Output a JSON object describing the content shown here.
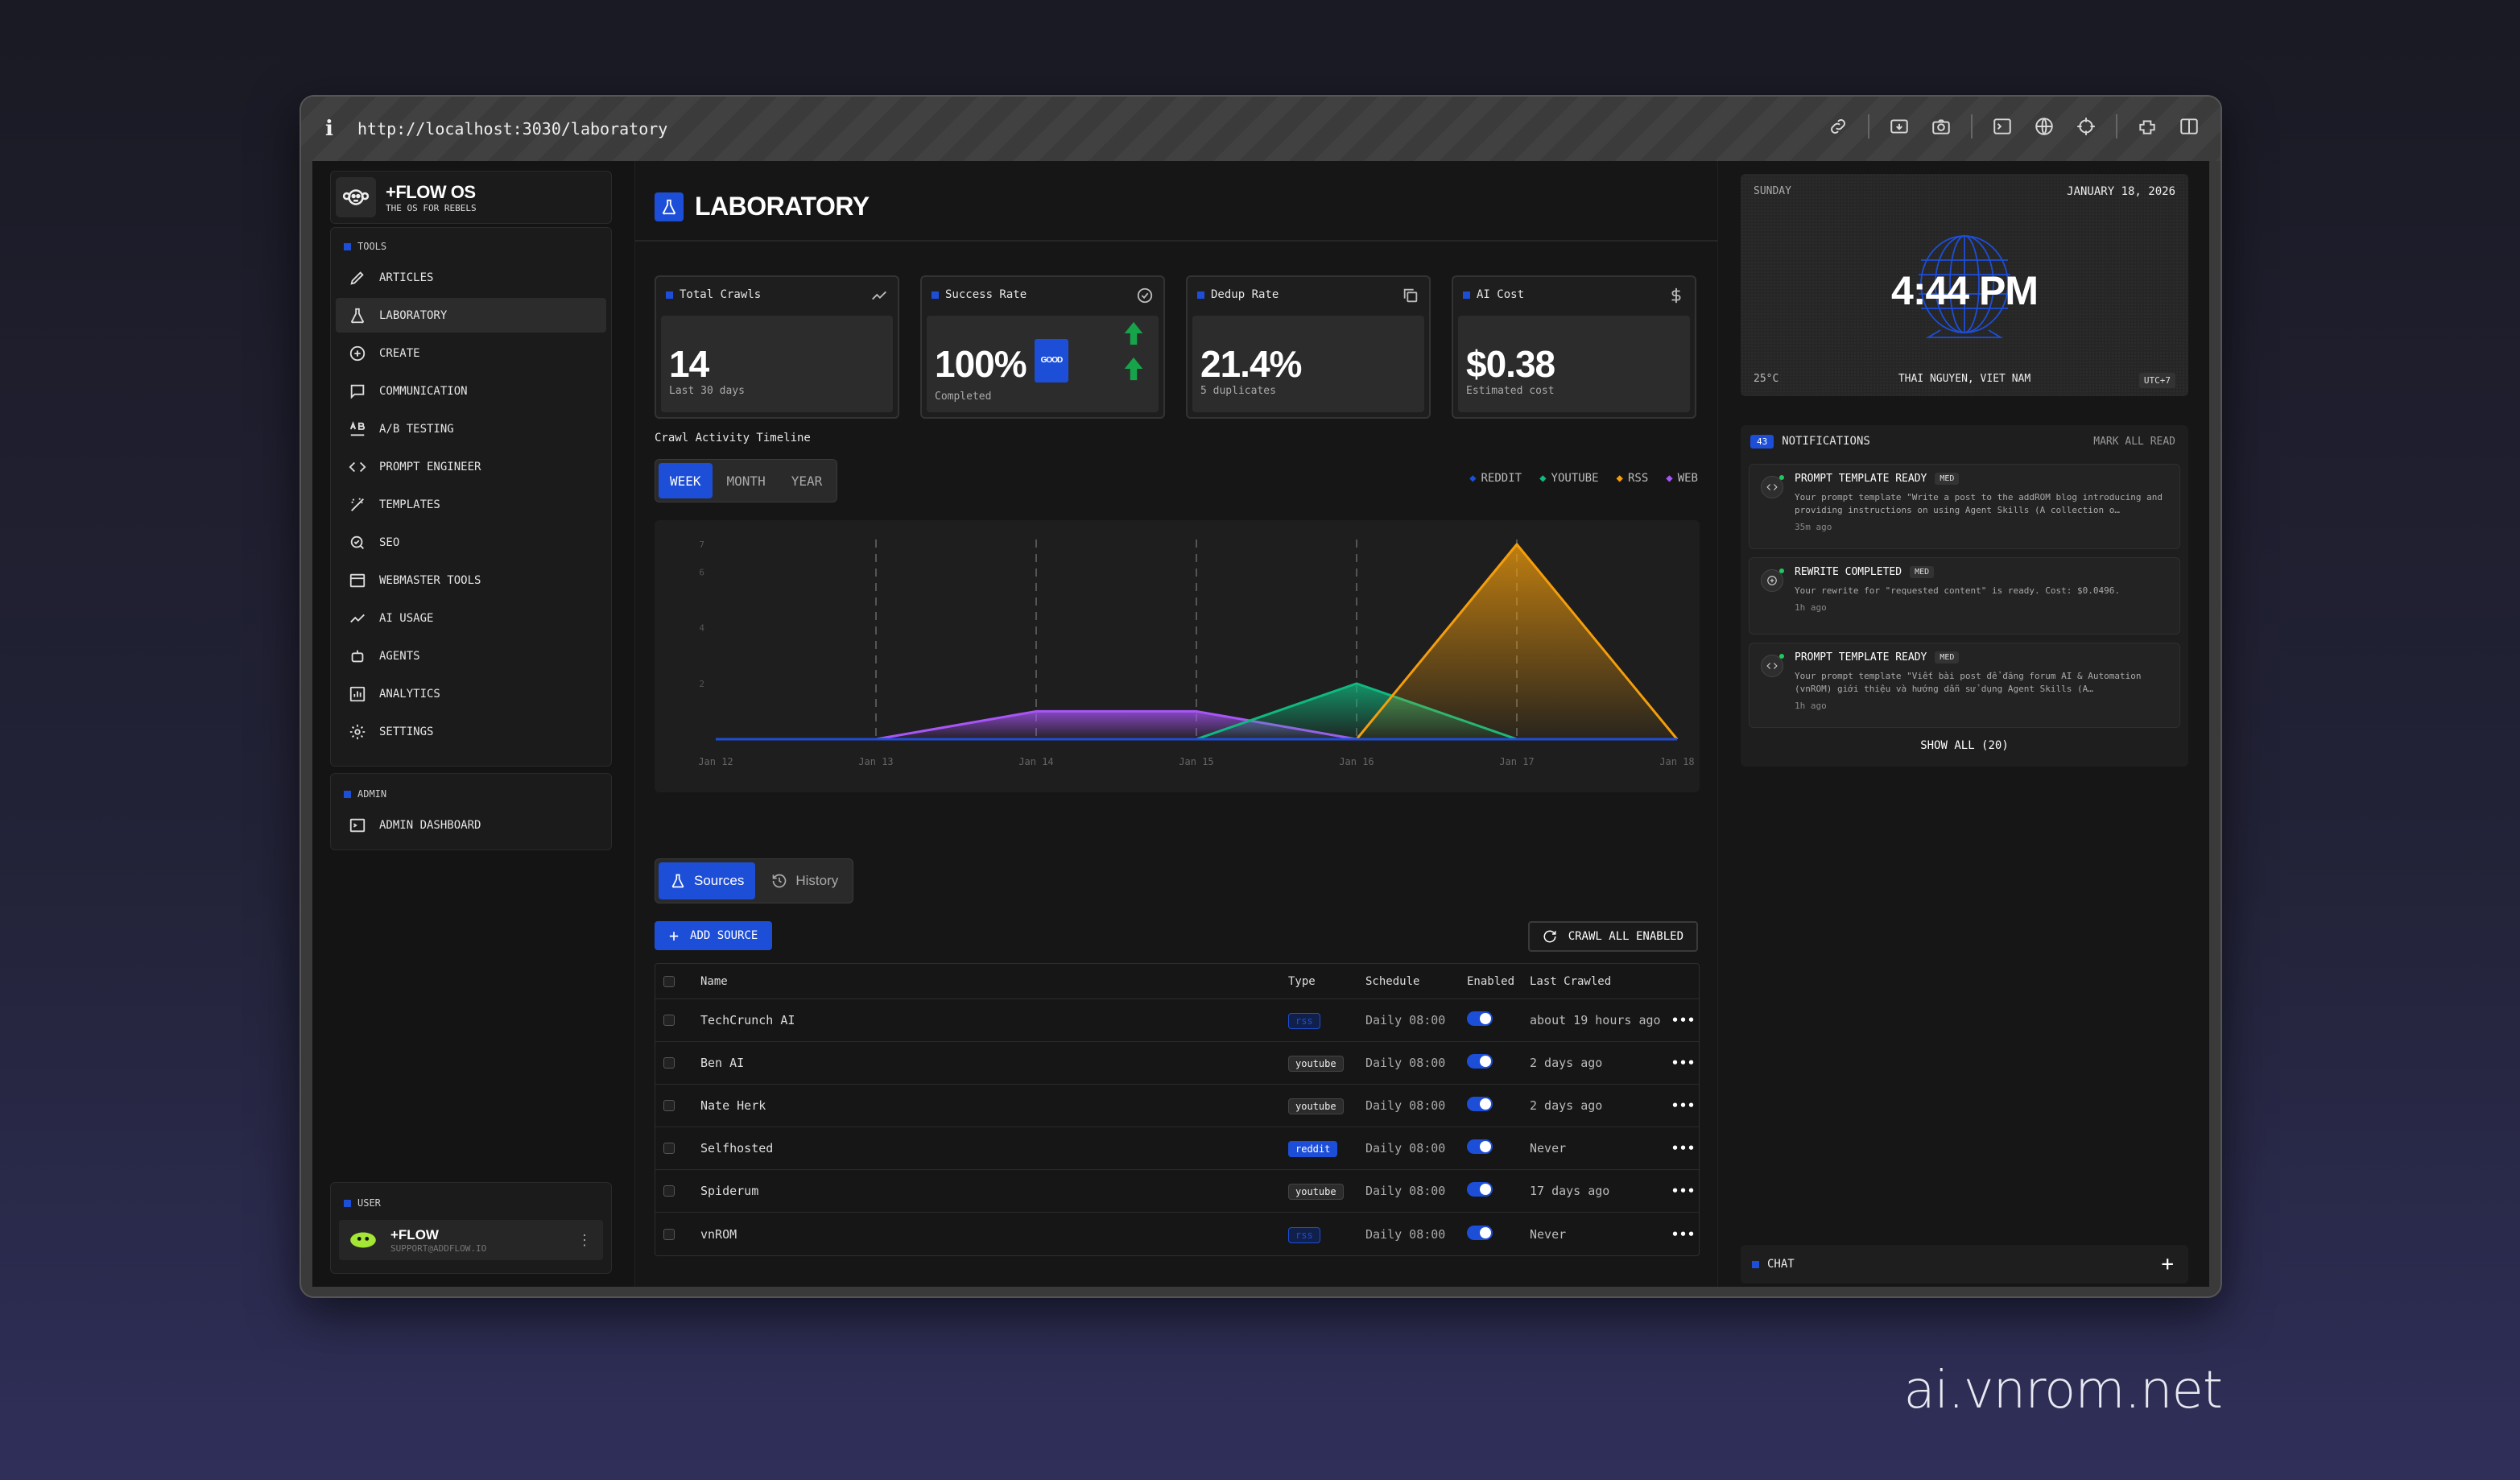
{
  "browser": {
    "url": "http://localhost:3030/laboratory"
  },
  "brand": {
    "name": "+FLOW OS",
    "tagline": "THE OS FOR REBELS"
  },
  "nav": {
    "tools_label": "TOOLS",
    "items": [
      {
        "label": "ARTICLES"
      },
      {
        "label": "LABORATORY"
      },
      {
        "label": "CREATE"
      },
      {
        "label": "COMMUNICATION"
      },
      {
        "label": "A/B TESTING"
      },
      {
        "label": "PROMPT ENGINEER"
      },
      {
        "label": "TEMPLATES"
      },
      {
        "label": "SEO"
      },
      {
        "label": "WEBMASTER TOOLS"
      },
      {
        "label": "AI USAGE"
      },
      {
        "label": "AGENTS"
      },
      {
        "label": "ANALYTICS"
      },
      {
        "label": "SETTINGS"
      }
    ],
    "admin_label": "ADMIN",
    "admin_item": "ADMIN DASHBOARD",
    "user_label": "USER",
    "user_name": "+FLOW",
    "user_email": "SUPPORT@ADDFLOW.IO"
  },
  "page": {
    "title": "LABORATORY"
  },
  "stats": [
    {
      "label": "Total Crawls",
      "value": "14",
      "sub": "Last 30 days"
    },
    {
      "label": "Success Rate",
      "value": "100%",
      "sub": "Completed",
      "badge": "GOOD"
    },
    {
      "label": "Dedup Rate",
      "value": "21.4%",
      "sub": "5 duplicates"
    },
    {
      "label": "AI Cost",
      "value": "$0.38",
      "sub": "Estimated cost"
    }
  ],
  "timeline": {
    "title": "Crawl Activity Timeline",
    "ranges": [
      "WEEK",
      "MONTH",
      "YEAR"
    ],
    "active_range": "WEEK"
  },
  "chart_data": {
    "type": "area",
    "title": "Crawl Activity Timeline",
    "categories": [
      "Jan 12",
      "Jan 13",
      "Jan 14",
      "Jan 15",
      "Jan 16",
      "Jan 17",
      "Jan 18"
    ],
    "ylim": [
      0,
      7
    ],
    "yticks": [
      "7",
      "6",
      "4",
      "2"
    ],
    "series": [
      {
        "name": "REDDIT",
        "color": "#1d4ed8",
        "values": [
          0,
          0,
          0,
          0,
          0,
          0,
          0
        ]
      },
      {
        "name": "YOUTUBE",
        "color": "#10b981",
        "values": [
          0,
          0,
          0,
          0,
          2,
          0,
          0
        ]
      },
      {
        "name": "RSS",
        "color": "#f59e0b",
        "values": [
          0,
          0,
          0,
          0,
          0,
          7,
          0
        ]
      },
      {
        "name": "WEB",
        "color": "#a855f7",
        "values": [
          0,
          0,
          1,
          1,
          0,
          0,
          0
        ]
      }
    ]
  },
  "sources_tabs": [
    "Sources",
    "History"
  ],
  "actions": {
    "add": "ADD SOURCE",
    "crawl": "CRAWL ALL ENABLED"
  },
  "table": {
    "headers": [
      "Name",
      "Type",
      "Schedule",
      "Enabled",
      "Last Crawled"
    ],
    "rows": [
      {
        "name": "TechCrunch AI",
        "type": "rss",
        "schedule": "Daily 08:00",
        "last": "about 19 hours ago"
      },
      {
        "name": "Ben AI",
        "type": "youtube",
        "schedule": "Daily 08:00",
        "last": "2 days ago"
      },
      {
        "name": "Nate Herk",
        "type": "youtube",
        "schedule": "Daily 08:00",
        "last": "2 days ago"
      },
      {
        "name": "Selfhosted",
        "type": "reddit",
        "schedule": "Daily 08:00",
        "last": "Never"
      },
      {
        "name": "Spiderum",
        "type": "youtube",
        "schedule": "Daily 08:00",
        "last": "17 days ago"
      },
      {
        "name": "vnROM",
        "type": "rss",
        "schedule": "Daily 08:00",
        "last": "Never"
      }
    ]
  },
  "clock": {
    "day": "SUNDAY",
    "date": "JANUARY 18, 2026",
    "time": "4:44 PM",
    "temp": "25°C",
    "location": "THAI NGUYEN, VIET NAM",
    "tz": "UTC+7"
  },
  "notifications": {
    "count": "43",
    "title": "NOTIFICATIONS",
    "mark_all": "MARK ALL READ",
    "items": [
      {
        "title": "PROMPT TEMPLATE READY",
        "level": "MED",
        "desc": "Your prompt template \"Write a post to the addROM blog introducing and providing instructions on using Agent Skills (A collection o…",
        "ago": "35m ago"
      },
      {
        "title": "REWRITE COMPLETED",
        "level": "MED",
        "desc": "Your rewrite for \"requested content\" is ready. Cost: $0.0496.",
        "ago": "1h ago"
      },
      {
        "title": "PROMPT TEMPLATE READY",
        "level": "MED",
        "desc": "Your prompt template \"Viết bài post để đăng forum AI & Automation (vnROM) giới thiệu và hướng dẫn sử dụng Agent Skills (A…",
        "ago": "1h ago"
      }
    ],
    "show_all": "SHOW ALL (20)"
  },
  "chat": {
    "label": "CHAT"
  },
  "watermark": "ai.vnrom.net"
}
